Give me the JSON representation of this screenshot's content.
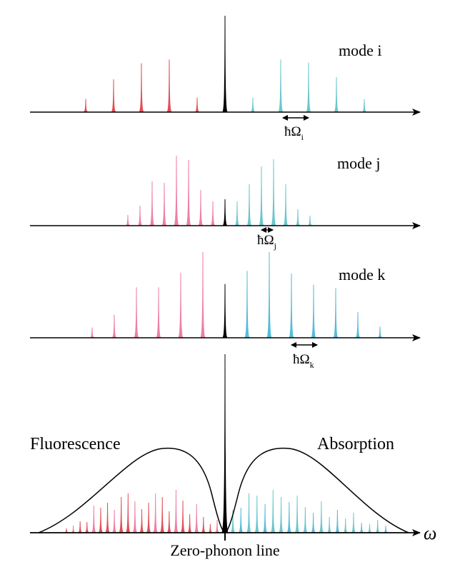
{
  "colors": {
    "fluorescence": "#e05058",
    "absorption": "#6cc6cc",
    "fluorescence_pink": "#ee7fa6",
    "absorption_blue": "#55bcd8",
    "zero_phonon": "#000000",
    "fluorescence_text": "#d8373b",
    "absorption_text": "#2e3d9a",
    "axis": "#000000"
  },
  "panels": [
    {
      "mode_label": "mode i",
      "spacing_label": "ħΩ",
      "spacing_subscript": "i",
      "red_amplitudes": [
        0.18,
        0.45,
        0.67,
        0.72,
        0.2
      ],
      "blue_amplitudes": [
        0.2,
        0.72,
        0.68,
        0.48,
        0.18
      ],
      "zpl_amplitude": 1.0,
      "fluorescence_color": "fluorescence",
      "absorption_color": "absorption"
    },
    {
      "mode_label": "mode j",
      "spacing_label": "ħΩ",
      "spacing_subscript": "j",
      "red_amplitudes": [
        0.15,
        0.28,
        0.62,
        0.6,
        0.98,
        0.92,
        0.5,
        0.34
      ],
      "blue_amplitudes": [
        0.34,
        0.58,
        0.83,
        0.93,
        0.58,
        0.23,
        0.14
      ],
      "zpl_amplitude": 0.33,
      "fluorescence_color": "fluorescence_pink",
      "absorption_color": "absorption"
    },
    {
      "mode_label": "mode k",
      "spacing_label": "ħΩ",
      "spacing_subscript": "k",
      "red_amplitudes": [
        0.12,
        0.27,
        0.59,
        0.59,
        0.76,
        1.0
      ],
      "blue_amplitudes": [
        0.78,
        1.0,
        0.75,
        0.62,
        0.58,
        0.3,
        0.13
      ],
      "zpl_amplitude": 0.8,
      "fluorescence_color": "fluorescence_pink",
      "absorption_color": "absorption_blue"
    }
  ],
  "combined": {
    "fluorescence_label": "Fluorescence",
    "absorption_label": "Absorption",
    "axis_label": "ω",
    "zpl_label": "Zero-phonon line",
    "zpl_amplitude": 1.0,
    "red_amplitudes": [
      0.06,
      0.1,
      0.16,
      0.15,
      0.38,
      0.35,
      0.42,
      0.32,
      0.5,
      0.55,
      0.44,
      0.33,
      0.42,
      0.55,
      0.5,
      0.3,
      0.6,
      0.45,
      0.26,
      0.4,
      0.22,
      0.12,
      0.18
    ],
    "blue_amplitudes": [
      0.32,
      0.35,
      0.55,
      0.52,
      0.4,
      0.6,
      0.5,
      0.43,
      0.52,
      0.36,
      0.28,
      0.44,
      0.22,
      0.32,
      0.2,
      0.28,
      0.14,
      0.12,
      0.18,
      0.1
    ]
  }
}
